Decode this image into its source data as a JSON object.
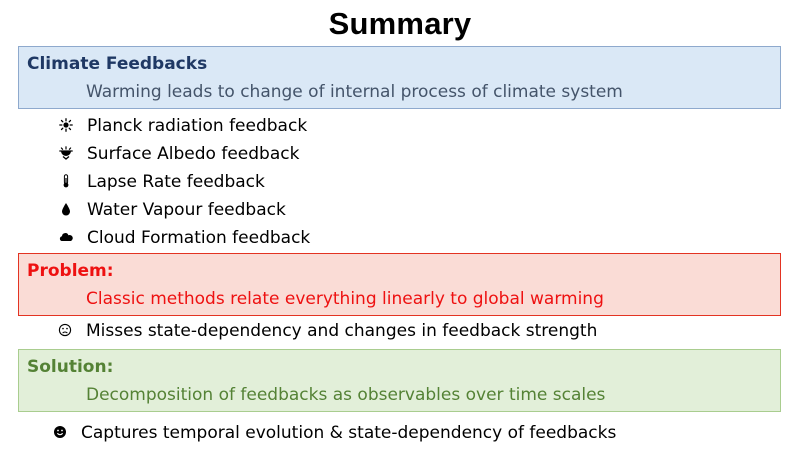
{
  "title": "Summary",
  "climate": {
    "heading": "Climate Feedbacks",
    "description": "Warming leads to change of internal process of climate system"
  },
  "feedbacks": [
    {
      "label": "Planck radiation feedback",
      "icon": "sun-icon"
    },
    {
      "label": "Surface Albedo feedback",
      "icon": "sun-over-surface-icon"
    },
    {
      "label": "Lapse Rate feedback",
      "icon": "thermometer-icon"
    },
    {
      "label": "Water Vapour feedback",
      "icon": "water-drop-icon"
    },
    {
      "label": "Cloud Formation feedback",
      "icon": "cloud-icon"
    }
  ],
  "problem": {
    "heading": "Problem:",
    "description": "Classic methods relate everything linearly to global warming",
    "point": "Misses state-dependency and changes in feedback strength",
    "point_icon": "sad-face-icon"
  },
  "solution": {
    "heading": "Solution:",
    "description": "Decomposition of feedbacks as observables over time scales",
    "point": "Captures temporal evolution & state-dependency of feedbacks",
    "point_icon": "happy-face-icon"
  },
  "colors": {
    "climate_fill": "#dae8f6",
    "problem_fill": "#fadcd6",
    "problem_text": "#ee1111",
    "solution_fill": "#e2efd9",
    "solution_text": "#548235"
  }
}
